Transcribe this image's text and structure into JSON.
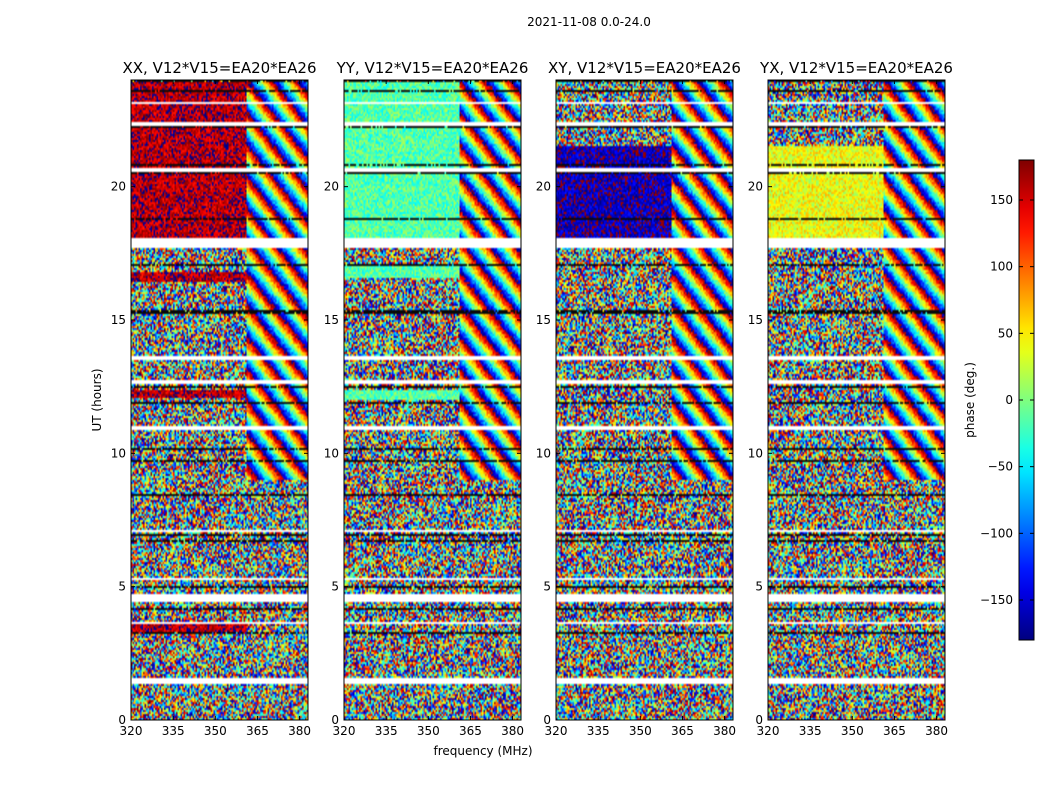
{
  "suptitle": "2021-11-08 0.0-24.0",
  "chart_data": {
    "type": "heatmap",
    "xlabel": "frequency (MHz)",
    "ylabel": "UT (hours)",
    "xlim": [
      320,
      383
    ],
    "ylim": [
      0,
      24
    ],
    "xticks": [
      320,
      335,
      350,
      365,
      380
    ],
    "yticks": [
      0,
      5,
      10,
      15,
      20
    ],
    "colorbar": {
      "label": "phase (deg.)",
      "range": [
        -180,
        180
      ],
      "ticks": [
        -150,
        -100,
        -50,
        0,
        50,
        100,
        150
      ],
      "colormap": "jet"
    },
    "panels": [
      {
        "title": "XX, V12*V15=EA20*EA26",
        "base_phase": 160,
        "coherent_hours": [
          [
            18.1,
            23.9
          ],
          [
            16.4,
            16.8
          ],
          [
            12.1,
            12.4
          ],
          [
            3.3,
            3.6
          ]
        ],
        "fringe_start_mhz": 361
      },
      {
        "title": "YY, V12*V15=EA20*EA26",
        "base_phase": -15,
        "coherent_hours": [
          [
            18.1,
            23.9
          ],
          [
            16.6,
            17.0
          ],
          [
            12.0,
            12.4
          ]
        ],
        "fringe_start_mhz": 361
      },
      {
        "title": "XY, V12*V15=EA20*EA26",
        "base_phase": -160,
        "coherent_hours": [
          [
            18.1,
            21.5
          ]
        ],
        "fringe_start_mhz": 361
      },
      {
        "title": "YX, V12*V15=EA20*EA26",
        "base_phase": 40,
        "coherent_hours": [
          [
            18.1,
            21.5
          ]
        ],
        "fringe_start_mhz": 361
      }
    ],
    "flagged_hours": [
      [
        1.35,
        1.55
      ],
      [
        3.6,
        3.7
      ],
      [
        4.45,
        4.7
      ],
      [
        5.25,
        5.35
      ],
      [
        7.05,
        7.15
      ],
      [
        10.9,
        11.0
      ],
      [
        12.6,
        12.75
      ],
      [
        13.5,
        13.65
      ],
      [
        17.7,
        18.05
      ],
      [
        20.55,
        20.7
      ],
      [
        22.3,
        22.45
      ],
      [
        23.1,
        23.2
      ]
    ]
  }
}
